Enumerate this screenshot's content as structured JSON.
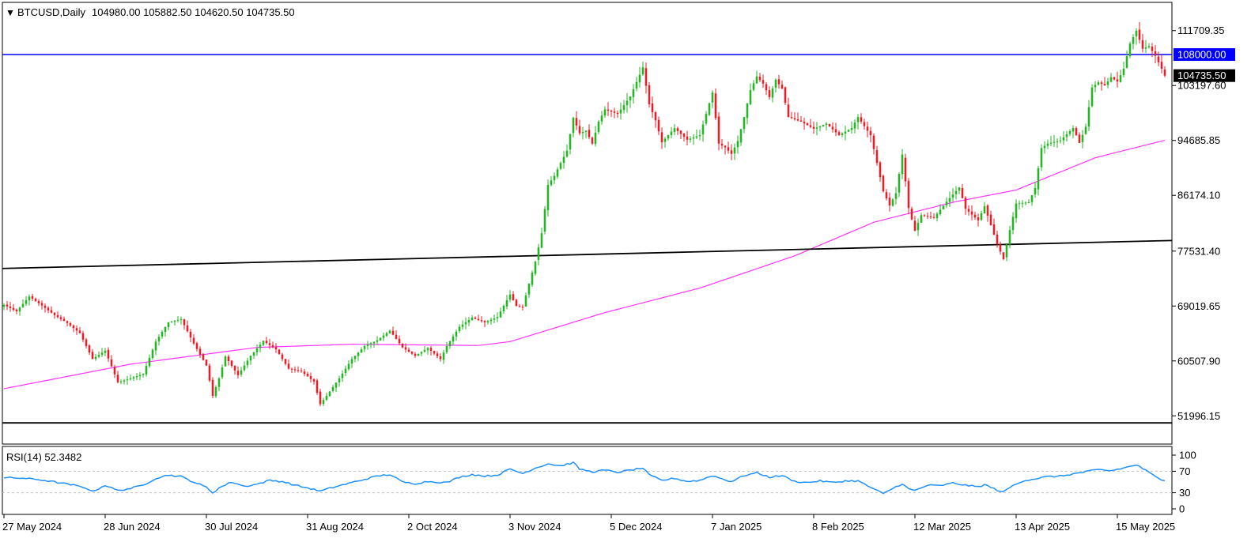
{
  "header": {
    "arrow": "▼",
    "symbol": "BTCUSD,Daily",
    "ohlc": "104980.00 105882.50 104620.50 104735.50"
  },
  "colors": {
    "up": "#26b526",
    "down": "#e0202a",
    "ma": "#ff33ff",
    "hline": "#0000ff",
    "trend": "#000000",
    "rsi": "#1e90ff",
    "tag_blue_bg": "#0000ff",
    "tag_black_bg": "#000000",
    "tag_text": "#ffffff",
    "grid_axis": "#000000",
    "level_dash": "#c0c0c0"
  },
  "price_axis": {
    "min": 47740.4,
    "max": 115965.1,
    "ticks": [
      "111709.35",
      "103197.60",
      "94685.85",
      "86174.10",
      "77531.40",
      "69019.65",
      "60507.90",
      "51996.15"
    ]
  },
  "price_tags": {
    "hline_label": "108000.00",
    "hline_value": 108000,
    "last_label": "104735.50",
    "last_value": 104735.5
  },
  "rsi": {
    "label": "RSI(14) 52.3482",
    "levels": [
      "100",
      "70",
      "30",
      "0"
    ],
    "dashed_levels": [
      70,
      30
    ]
  },
  "time_axis": {
    "labels": [
      "27 May 2024",
      "28 Jun 2024",
      "30 Jul 2024",
      "31 Aug 2024",
      "2 Oct 2024",
      "3 Nov 2024",
      "5 Dec 2024",
      "7 Jan 2025",
      "8 Feb 2025",
      "12 Mar 2025",
      "13 Apr 2025",
      "15 May 2025"
    ],
    "label_index": [
      0,
      32,
      64,
      96,
      128,
      160,
      192,
      224,
      256,
      288,
      320,
      352
    ]
  },
  "chart_data": {
    "type": "candlestick",
    "x_start": "27 May 2024",
    "x_end": "29 May 2025",
    "bars": 368,
    "close_anchors": [
      [
        0,
        69200
      ],
      [
        4,
        68200
      ],
      [
        8,
        70500
      ],
      [
        12,
        69100
      ],
      [
        16,
        67600
      ],
      [
        20,
        66400
      ],
      [
        24,
        64800
      ],
      [
        28,
        60800
      ],
      [
        32,
        62100
      ],
      [
        36,
        57200
      ],
      [
        40,
        57800
      ],
      [
        44,
        58500
      ],
      [
        48,
        63500
      ],
      [
        52,
        66500
      ],
      [
        56,
        67000
      ],
      [
        60,
        63200
      ],
      [
        64,
        59800
      ],
      [
        66,
        55100
      ],
      [
        68,
        57800
      ],
      [
        70,
        61200
      ],
      [
        74,
        58300
      ],
      [
        78,
        61300
      ],
      [
        82,
        63600
      ],
      [
        86,
        62300
      ],
      [
        90,
        59300
      ],
      [
        94,
        58900
      ],
      [
        98,
        57300
      ],
      [
        100,
        53800
      ],
      [
        102,
        55100
      ],
      [
        106,
        57800
      ],
      [
        110,
        60800
      ],
      [
        114,
        62800
      ],
      [
        118,
        63700
      ],
      [
        122,
        65200
      ],
      [
        126,
        62600
      ],
      [
        130,
        61300
      ],
      [
        134,
        62500
      ],
      [
        138,
        60800
      ],
      [
        140,
        62800
      ],
      [
        144,
        65800
      ],
      [
        148,
        67200
      ],
      [
        152,
        66500
      ],
      [
        156,
        67300
      ],
      [
        160,
        70800
      ],
      [
        162,
        69000
      ],
      [
        164,
        68800
      ],
      [
        166,
        72500
      ],
      [
        168,
        75900
      ],
      [
        170,
        80300
      ],
      [
        172,
        87800
      ],
      [
        174,
        89200
      ],
      [
        176,
        91200
      ],
      [
        178,
        93100
      ],
      [
        180,
        98200
      ],
      [
        182,
        95800
      ],
      [
        184,
        96200
      ],
      [
        186,
        94200
      ],
      [
        188,
        97600
      ],
      [
        190,
        99500
      ],
      [
        194,
        98800
      ],
      [
        198,
        101500
      ],
      [
        202,
        106000
      ],
      [
        204,
        100300
      ],
      [
        206,
        97800
      ],
      [
        208,
        94400
      ],
      [
        212,
        96600
      ],
      [
        216,
        94800
      ],
      [
        220,
        95500
      ],
      [
        222,
        98800
      ],
      [
        224,
        102100
      ],
      [
        226,
        94200
      ],
      [
        228,
        93600
      ],
      [
        230,
        92600
      ],
      [
        232,
        94600
      ],
      [
        234,
        98300
      ],
      [
        236,
        102500
      ],
      [
        238,
        104600
      ],
      [
        240,
        103500
      ],
      [
        242,
        101400
      ],
      [
        244,
        104100
      ],
      [
        246,
        102700
      ],
      [
        248,
        98300
      ],
      [
        252,
        97600
      ],
      [
        256,
        96500
      ],
      [
        260,
        97300
      ],
      [
        264,
        95500
      ],
      [
        268,
        96600
      ],
      [
        270,
        98300
      ],
      [
        274,
        95500
      ],
      [
        276,
        91200
      ],
      [
        278,
        86800
      ],
      [
        280,
        84600
      ],
      [
        282,
        86500
      ],
      [
        284,
        92500
      ],
      [
        286,
        84200
      ],
      [
        288,
        80700
      ],
      [
        290,
        83100
      ],
      [
        294,
        82700
      ],
      [
        298,
        85200
      ],
      [
        302,
        87400
      ],
      [
        304,
        84100
      ],
      [
        308,
        82300
      ],
      [
        310,
        84500
      ],
      [
        314,
        78600
      ],
      [
        316,
        76300
      ],
      [
        318,
        80800
      ],
      [
        320,
        84900
      ],
      [
        324,
        85100
      ],
      [
        326,
        87300
      ],
      [
        328,
        93500
      ],
      [
        330,
        94200
      ],
      [
        334,
        94700
      ],
      [
        338,
        96600
      ],
      [
        340,
        94300
      ],
      [
        342,
        96800
      ],
      [
        344,
        102900
      ],
      [
        346,
        103700
      ],
      [
        348,
        103200
      ],
      [
        350,
        104500
      ],
      [
        352,
        103800
      ],
      [
        354,
        105800
      ],
      [
        356,
        109700
      ],
      [
        358,
        111700
      ],
      [
        360,
        108900
      ],
      [
        362,
        109300
      ],
      [
        364,
        107800
      ],
      [
        366,
        105800
      ],
      [
        367,
        104735.5
      ]
    ],
    "ma_anchors": [
      [
        0,
        56200
      ],
      [
        40,
        60000
      ],
      [
        80,
        62600
      ],
      [
        110,
        63100
      ],
      [
        150,
        62900
      ],
      [
        160,
        63500
      ],
      [
        190,
        68000
      ],
      [
        220,
        71800
      ],
      [
        250,
        76800
      ],
      [
        275,
        82000
      ],
      [
        300,
        85100
      ],
      [
        320,
        87000
      ],
      [
        345,
        92000
      ],
      [
        367,
        94700
      ]
    ],
    "trendlines": [
      {
        "points": [
          [
            0,
            74850
          ],
          [
            367,
            79150
          ]
        ]
      },
      {
        "points": [
          [
            0,
            50900
          ],
          [
            367,
            50900
          ]
        ]
      }
    ],
    "hline": 108000,
    "rsi_anchors": [
      [
        0,
        58
      ],
      [
        6,
        57
      ],
      [
        10,
        55
      ],
      [
        14,
        52
      ],
      [
        18,
        48
      ],
      [
        22,
        44
      ],
      [
        26,
        39
      ],
      [
        28,
        32
      ],
      [
        32,
        44
      ],
      [
        36,
        34
      ],
      [
        40,
        38
      ],
      [
        44,
        44
      ],
      [
        48,
        57
      ],
      [
        52,
        63
      ],
      [
        56,
        60
      ],
      [
        60,
        50
      ],
      [
        64,
        40
      ],
      [
        66,
        30
      ],
      [
        68,
        39
      ],
      [
        72,
        50
      ],
      [
        76,
        42
      ],
      [
        80,
        46
      ],
      [
        84,
        53
      ],
      [
        88,
        51
      ],
      [
        92,
        44
      ],
      [
        96,
        39
      ],
      [
        100,
        33
      ],
      [
        104,
        40
      ],
      [
        110,
        49
      ],
      [
        114,
        55
      ],
      [
        118,
        61
      ],
      [
        122,
        64
      ],
      [
        126,
        50
      ],
      [
        130,
        47
      ],
      [
        134,
        51
      ],
      [
        140,
        49
      ],
      [
        144,
        59
      ],
      [
        148,
        64
      ],
      [
        152,
        61
      ],
      [
        156,
        63
      ],
      [
        160,
        74
      ],
      [
        164,
        66
      ],
      [
        168,
        76
      ],
      [
        172,
        84
      ],
      [
        176,
        80
      ],
      [
        180,
        86
      ],
      [
        182,
        74
      ],
      [
        186,
        69
      ],
      [
        190,
        72
      ],
      [
        194,
        68
      ],
      [
        198,
        72
      ],
      [
        202,
        76
      ],
      [
        204,
        63
      ],
      [
        208,
        53
      ],
      [
        212,
        57
      ],
      [
        216,
        51
      ],
      [
        220,
        53
      ],
      [
        224,
        62
      ],
      [
        228,
        54
      ],
      [
        230,
        51
      ],
      [
        234,
        62
      ],
      [
        238,
        67
      ],
      [
        242,
        59
      ],
      [
        246,
        62
      ],
      [
        250,
        51
      ],
      [
        254,
        49
      ],
      [
        258,
        52
      ],
      [
        262,
        49
      ],
      [
        266,
        52
      ],
      [
        270,
        52
      ],
      [
        274,
        40
      ],
      [
        276,
        34
      ],
      [
        278,
        28
      ],
      [
        280,
        35
      ],
      [
        284,
        47
      ],
      [
        286,
        37
      ],
      [
        288,
        34
      ],
      [
        292,
        44
      ],
      [
        296,
        43
      ],
      [
        300,
        48
      ],
      [
        304,
        44
      ],
      [
        308,
        41
      ],
      [
        310,
        45
      ],
      [
        314,
        35
      ],
      [
        316,
        31
      ],
      [
        318,
        40
      ],
      [
        322,
        52
      ],
      [
        326,
        56
      ],
      [
        330,
        60
      ],
      [
        334,
        61
      ],
      [
        338,
        65
      ],
      [
        342,
        69
      ],
      [
        346,
        73
      ],
      [
        350,
        71
      ],
      [
        354,
        76
      ],
      [
        358,
        82
      ],
      [
        360,
        75
      ],
      [
        364,
        60
      ],
      [
        367,
        52.35
      ]
    ]
  }
}
